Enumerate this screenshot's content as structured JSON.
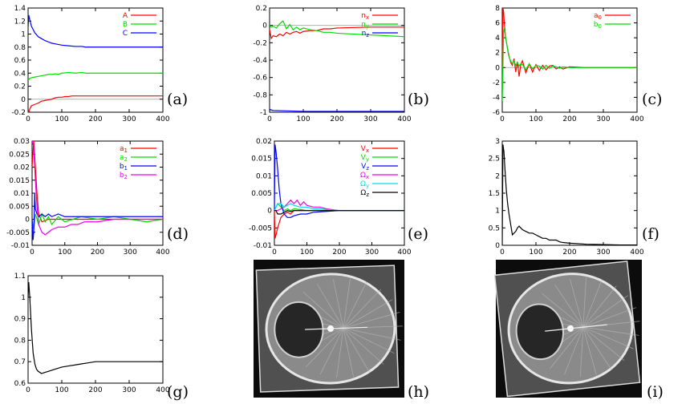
{
  "chart_data": [
    {
      "panel": "(a)",
      "type": "line",
      "xlim": [
        0,
        400
      ],
      "ylim": [
        -0.2,
        1.4
      ],
      "xticks": [
        0,
        100,
        200,
        300,
        400
      ],
      "yticks": [
        -0.2,
        0,
        0.2,
        0.4,
        0.6,
        0.8,
        1,
        1.2,
        1.4
      ],
      "zero_line": true,
      "series": [
        {
          "name": "A",
          "color": "#ff0000",
          "x": [
            0,
            2,
            5,
            10,
            20,
            30,
            40,
            50,
            60,
            70,
            80,
            90,
            100,
            110,
            120,
            130,
            140,
            150,
            160,
            170,
            180,
            200,
            300,
            400
          ],
          "y": [
            -0.15,
            -0.2,
            -0.15,
            -0.1,
            -0.08,
            -0.06,
            -0.03,
            -0.02,
            -0.01,
            0.0,
            0.02,
            0.03,
            0.03,
            0.04,
            0.04,
            0.05,
            0.05,
            0.05,
            0.05,
            0.05,
            0.05,
            0.05,
            0.05,
            0.05
          ]
        },
        {
          "name": "B",
          "color": "#00dd00",
          "x": [
            0,
            2,
            5,
            10,
            20,
            30,
            40,
            50,
            60,
            70,
            80,
            90,
            100,
            120,
            140,
            160,
            170,
            180,
            200,
            300,
            400
          ],
          "y": [
            0.3,
            0.3,
            0.32,
            0.33,
            0.34,
            0.35,
            0.36,
            0.37,
            0.38,
            0.38,
            0.39,
            0.38,
            0.4,
            0.41,
            0.4,
            0.41,
            0.4,
            0.4,
            0.4,
            0.4,
            0.4
          ]
        },
        {
          "name": "C",
          "color": "#0000ff",
          "x": [
            0,
            2,
            5,
            10,
            20,
            30,
            40,
            50,
            60,
            70,
            80,
            100,
            120,
            140,
            160,
            170,
            180,
            200,
            300,
            400
          ],
          "y": [
            1.1,
            1.29,
            1.22,
            1.12,
            1.02,
            0.96,
            0.93,
            0.9,
            0.88,
            0.86,
            0.85,
            0.83,
            0.82,
            0.81,
            0.81,
            0.8,
            0.8,
            0.8,
            0.8,
            0.8
          ]
        }
      ]
    },
    {
      "panel": "(b)",
      "type": "line",
      "xlim": [
        0,
        400
      ],
      "ylim": [
        -1,
        0.2
      ],
      "xticks": [
        0,
        100,
        200,
        300,
        400
      ],
      "yticks": [
        -1,
        -0.8,
        -0.6,
        -0.4,
        -0.2,
        0,
        0.2
      ],
      "zero_line": true,
      "series": [
        {
          "name": "n_x",
          "color": "#ff0000",
          "x": [
            0,
            5,
            10,
            20,
            30,
            40,
            50,
            60,
            70,
            80,
            90,
            100,
            120,
            140,
            160,
            180,
            200,
            300,
            400
          ],
          "y": [
            -0.05,
            -0.15,
            -0.12,
            -0.13,
            -0.1,
            -0.12,
            -0.08,
            -0.1,
            -0.08,
            -0.07,
            -0.09,
            -0.07,
            -0.06,
            -0.06,
            -0.04,
            -0.04,
            -0.03,
            -0.02,
            -0.02
          ]
        },
        {
          "name": "n_y",
          "color": "#00dd00",
          "x": [
            0,
            5,
            10,
            20,
            30,
            40,
            50,
            60,
            70,
            80,
            90,
            100,
            120,
            140,
            160,
            180,
            200,
            300,
            400
          ],
          "y": [
            0.0,
            -0.02,
            -0.01,
            -0.03,
            0.02,
            0.05,
            -0.04,
            0.01,
            -0.05,
            -0.02,
            -0.05,
            -0.03,
            -0.05,
            -0.06,
            -0.08,
            -0.08,
            -0.09,
            -0.11,
            -0.13
          ]
        },
        {
          "name": "n_z",
          "color": "#0000ff",
          "x": [
            0,
            2,
            10,
            100,
            200,
            300,
            400
          ],
          "y": [
            -0.98,
            -0.97,
            -0.98,
            -0.99,
            -0.99,
            -0.99,
            -0.99
          ]
        }
      ]
    },
    {
      "panel": "(c)",
      "type": "line",
      "xlim": [
        0,
        400
      ],
      "ylim": [
        -6,
        8
      ],
      "xticks": [
        0,
        100,
        200,
        300,
        400
      ],
      "yticks": [
        -6,
        -4,
        -2,
        0,
        2,
        4,
        6,
        8
      ],
      "zero_line": true,
      "series": [
        {
          "name": "a_0",
          "color": "#ff0000",
          "x": [
            0,
            2,
            4,
            6,
            8,
            10,
            14,
            18,
            22,
            26,
            30,
            35,
            40,
            45,
            50,
            55,
            60,
            70,
            80,
            90,
            100,
            110,
            120,
            130,
            140,
            150,
            160,
            170,
            180,
            200,
            250,
            300,
            350,
            400
          ],
          "y": [
            0,
            8,
            7.5,
            6,
            5,
            4,
            3,
            2,
            1.2,
            0.6,
            0.3,
            1.2,
            -0.6,
            0.8,
            -1.2,
            0.4,
            0.9,
            -0.7,
            0.5,
            -0.6,
            0.4,
            -0.4,
            0.3,
            -0.3,
            0.2,
            0.3,
            -0.2,
            0.1,
            -0.2,
            0.1,
            0,
            0,
            0,
            0
          ]
        },
        {
          "name": "b_0",
          "color": "#00dd00",
          "x": [
            0,
            2,
            4,
            6,
            8,
            10,
            14,
            18,
            22,
            26,
            30,
            35,
            40,
            45,
            50,
            55,
            60,
            70,
            80,
            90,
            100,
            110,
            120,
            130,
            140,
            150,
            160,
            170,
            180,
            200,
            250,
            300,
            350,
            400
          ],
          "y": [
            -4.5,
            0,
            5,
            5.2,
            4.6,
            4,
            3,
            1.8,
            1.2,
            0.8,
            0.5,
            0.9,
            0.3,
            0.7,
            0.2,
            0.5,
            0.4,
            -0.3,
            0.5,
            -0.2,
            0.3,
            0.2,
            -0.2,
            0.3,
            -0.1,
            0.2,
            0.1,
            -0.1,
            0.1,
            0,
            0,
            0,
            0,
            0
          ]
        }
      ]
    },
    {
      "panel": "(d)",
      "type": "line",
      "xlim": [
        0,
        400
      ],
      "ylim": [
        -0.01,
        0.03
      ],
      "xticks": [
        0,
        100,
        200,
        300,
        400
      ],
      "yticks": [
        -0.01,
        -0.005,
        0,
        0.005,
        0.01,
        0.015,
        0.02,
        0.025,
        0.03
      ],
      "zero_line": false,
      "series": [
        {
          "name": "a_1",
          "color": "#ff0000",
          "x": [
            0,
            5,
            10,
            15,
            20,
            30,
            50,
            100,
            150,
            200,
            300,
            400
          ],
          "y": [
            0.02,
            0.03,
            0.02,
            0.01,
            0.002,
            -0.001,
            0,
            0,
            0,
            0,
            0,
            0
          ]
        },
        {
          "name": "a_2",
          "color": "#00dd00",
          "x": [
            0,
            5,
            10,
            20,
            30,
            40,
            50,
            60,
            80,
            100,
            150,
            200,
            250,
            300,
            350,
            400
          ],
          "y": [
            0,
            -0.004,
            0.002,
            -0.002,
            0.002,
            -0.001,
            0.001,
            -0.002,
            0.001,
            -0.001,
            0.001,
            0,
            0.001,
            0,
            -0.001,
            0
          ]
        },
        {
          "name": "b_1",
          "color": "#0000ff",
          "x": [
            0,
            3,
            5,
            8,
            10,
            15,
            20,
            30,
            40,
            50,
            60,
            80,
            100,
            150,
            200,
            250,
            300,
            350,
            400
          ],
          "y": [
            0,
            -0.008,
            -0.005,
            0.01,
            0.004,
            0.002,
            0.001,
            0.002,
            0.001,
            0.002,
            0.001,
            0.002,
            0.001,
            0.001,
            0.001,
            0.001,
            0.001,
            0.001,
            0.001
          ]
        },
        {
          "name": "b_2",
          "color": "#ee00ee",
          "x": [
            0,
            5,
            10,
            15,
            20,
            30,
            40,
            50,
            60,
            80,
            100,
            120,
            140,
            160,
            180,
            200,
            250,
            300,
            350,
            400
          ],
          "y": [
            0.03,
            0.028,
            0.015,
            0.005,
            -0.002,
            -0.005,
            -0.006,
            -0.005,
            -0.004,
            -0.003,
            -0.003,
            -0.002,
            -0.002,
            -0.001,
            -0.001,
            -0.001,
            0,
            0,
            0,
            0
          ]
        }
      ]
    },
    {
      "panel": "(e)",
      "type": "line",
      "xlim": [
        0,
        400
      ],
      "ylim": [
        -0.01,
        0.02
      ],
      "xticks": [
        0,
        100,
        200,
        300,
        400
      ],
      "yticks": [
        -0.01,
        -0.005,
        0,
        0.005,
        0.01,
        0.015,
        0.02
      ],
      "zero_line": false,
      "series": [
        {
          "name": "V_x",
          "color": "#ff0000",
          "x": [
            0,
            2,
            5,
            10,
            20,
            30,
            40,
            50,
            60,
            80,
            100,
            150,
            200,
            300,
            400
          ],
          "y": [
            0,
            -0.008,
            -0.007,
            -0.005,
            -0.002,
            -0.001,
            -0.0005,
            -0.001,
            0,
            0,
            0,
            0,
            0,
            0,
            0
          ]
        },
        {
          "name": "V_y",
          "color": "#00dd00",
          "x": [
            0,
            5,
            10,
            20,
            30,
            40,
            50,
            60,
            80,
            100,
            150,
            200,
            300,
            400
          ],
          "y": [
            0,
            0.001,
            0.002,
            0.001,
            0,
            0.0005,
            0,
            0.0005,
            0.0003,
            0,
            0,
            0,
            0,
            0
          ]
        },
        {
          "name": "V_z",
          "color": "#0000ff",
          "x": [
            0,
            2,
            5,
            10,
            15,
            20,
            30,
            40,
            50,
            60,
            80,
            100,
            120,
            150,
            200,
            300,
            400
          ],
          "y": [
            0,
            0.019,
            0.017,
            0.012,
            0.006,
            0.002,
            -0.001,
            -0.002,
            -0.002,
            -0.0015,
            -0.001,
            -0.001,
            -0.0005,
            -0.0003,
            0,
            0,
            0
          ]
        },
        {
          "name": "Ω_x",
          "color": "#ee00ee",
          "x": [
            0,
            10,
            20,
            30,
            40,
            50,
            60,
            70,
            80,
            90,
            100,
            120,
            140,
            160,
            200,
            300,
            400
          ],
          "y": [
            0,
            0,
            0.0005,
            0.001,
            0.002,
            0.003,
            0.002,
            0.003,
            0.0015,
            0.0025,
            0.0015,
            0.001,
            0.001,
            0.0005,
            0,
            0,
            0
          ]
        },
        {
          "name": "Ω_y",
          "color": "#00dddd",
          "x": [
            0,
            10,
            20,
            30,
            40,
            50,
            60,
            80,
            100,
            120,
            140,
            160,
            200,
            300,
            400
          ],
          "y": [
            0,
            0.002,
            0.002,
            0.001,
            0.0015,
            0.002,
            0.0015,
            0.001,
            0.001,
            0.0005,
            0.0005,
            0.0003,
            0,
            0,
            0
          ]
        },
        {
          "name": "Ω_z",
          "color": "#000000",
          "x": [
            0,
            5,
            10,
            20,
            30,
            40,
            50,
            60,
            80,
            100,
            150,
            200,
            300,
            400
          ],
          "y": [
            0,
            0,
            -0.001,
            -0.001,
            -0.0005,
            0,
            -0.0003,
            0,
            0,
            0,
            0,
            0,
            0,
            0
          ]
        }
      ]
    },
    {
      "panel": "(f)",
      "type": "line",
      "xlim": [
        0,
        400
      ],
      "ylim": [
        0,
        3
      ],
      "xticks": [
        0,
        100,
        200,
        300,
        400
      ],
      "yticks": [
        0,
        0.5,
        1,
        1.5,
        2,
        2.5,
        3
      ],
      "zero_line": false,
      "series": [
        {
          "name": "",
          "color": "#000000",
          "x": [
            0,
            2,
            5,
            8,
            12,
            16,
            20,
            25,
            30,
            35,
            40,
            45,
            50,
            55,
            60,
            70,
            80,
            90,
            100,
            110,
            120,
            130,
            140,
            150,
            160,
            170,
            180,
            200,
            250,
            300,
            350,
            400
          ],
          "y": [
            0,
            2.9,
            2.7,
            2.2,
            1.6,
            1.2,
            0.9,
            0.6,
            0.3,
            0.35,
            0.4,
            0.5,
            0.55,
            0.5,
            0.45,
            0.4,
            0.35,
            0.35,
            0.3,
            0.25,
            0.2,
            0.2,
            0.15,
            0.15,
            0.15,
            0.1,
            0.08,
            0.06,
            0.03,
            0.02,
            0.01,
            0.01
          ]
        }
      ]
    },
    {
      "panel": "(g)",
      "type": "line",
      "xlim": [
        0,
        400
      ],
      "ylim": [
        0.6,
        1.1
      ],
      "xticks": [
        0,
        100,
        200,
        300,
        400
      ],
      "yticks": [
        0.6,
        0.7,
        0.8,
        0.9,
        1
      ],
      "ytick_labels": [
        "0.6",
        "0.7",
        "0.8",
        "0.9",
        "1"
      ],
      "yticks_extra": [
        1.1
      ],
      "zero_line": false,
      "series": [
        {
          "name": "",
          "color": "#000000",
          "x": [
            0,
            2,
            5,
            10,
            15,
            20,
            25,
            30,
            40,
            50,
            60,
            70,
            80,
            100,
            120,
            140,
            160,
            180,
            200,
            250,
            300,
            350,
            400
          ],
          "y": [
            1.0,
            1.07,
            1.0,
            0.85,
            0.74,
            0.69,
            0.665,
            0.655,
            0.645,
            0.65,
            0.655,
            0.66,
            0.665,
            0.675,
            0.68,
            0.685,
            0.69,
            0.695,
            0.7,
            0.7,
            0.7,
            0.7,
            0.7
          ]
        }
      ]
    }
  ],
  "panel_labels": {
    "a": "(a)",
    "b": "(b)",
    "c": "(c)",
    "d": "(d)",
    "e": "(e)",
    "f": "(f)",
    "g": "(g)",
    "h": "(h)",
    "i": "(i)"
  }
}
